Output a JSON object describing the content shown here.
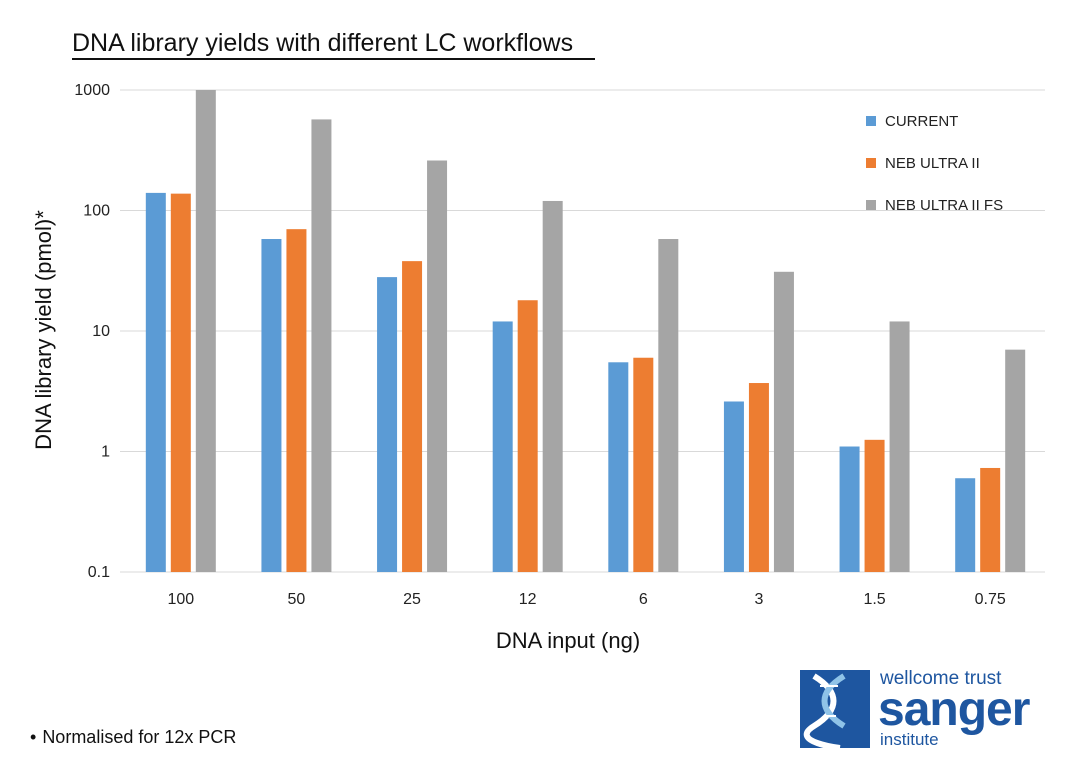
{
  "chart_data": {
    "type": "bar",
    "title": "DNA library yields with different LC workflows",
    "xlabel": "DNA input (ng)",
    "ylabel": "DNA library yield (pmol)*",
    "yscale": "log",
    "ylim": [
      0.1,
      1000
    ],
    "yticks": [
      "1000",
      "100",
      "10",
      "1",
      "0.1"
    ],
    "yticks_values": [
      1000,
      100,
      10,
      1,
      0.1
    ],
    "categories": [
      "100",
      "50",
      "25",
      "12",
      "6",
      "3",
      "1.5",
      "0.75"
    ],
    "series": [
      {
        "name": "CURRENT",
        "color": "#5b9bd5",
        "values": [
          140,
          58,
          28,
          12,
          5.5,
          2.6,
          1.1,
          0.6
        ]
      },
      {
        "name": "NEB ULTRA II",
        "color": "#ed7d31",
        "values": [
          138,
          70,
          38,
          18,
          6,
          3.7,
          1.25,
          0.73
        ]
      },
      {
        "name": "NEB ULTRA II FS",
        "color": "#a5a5a5",
        "values": [
          1000,
          570,
          260,
          120,
          58,
          31,
          12,
          7
        ]
      }
    ],
    "grid": true,
    "legend_position": "top-right"
  },
  "footnote": "Normalised for 12x PCR",
  "footnote_bullet": "•",
  "logo": {
    "line1": "wellcome trust",
    "line2": "sanger",
    "line3": "institute",
    "color": "#1e56a0"
  }
}
